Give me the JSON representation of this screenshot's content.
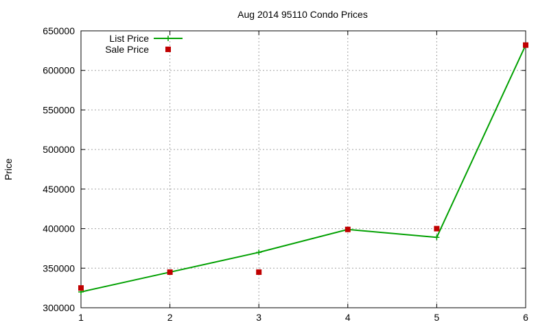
{
  "chart_data": {
    "type": "line",
    "title": "Aug 2014 95110 Condo Prices",
    "xlabel": "",
    "ylabel": "Price",
    "x": [
      1,
      2,
      3,
      4,
      5,
      6
    ],
    "xlim": [
      1,
      6
    ],
    "ylim": [
      300000,
      650000
    ],
    "xticks": [
      "1",
      "2",
      "3",
      "4",
      "5",
      "6"
    ],
    "yticks": [
      "300000",
      "350000",
      "400000",
      "450000",
      "500000",
      "550000",
      "600000",
      "650000"
    ],
    "grid": true,
    "legend_position": "top-left",
    "series": [
      {
        "name": "List Price",
        "style": "line+cross",
        "color": "#00a000",
        "values": [
          320000,
          345000,
          370000,
          399000,
          389000,
          632000
        ]
      },
      {
        "name": "Sale Price",
        "style": "square",
        "color": "#c00000",
        "values": [
          325000,
          345000,
          345000,
          399000,
          400000,
          632000
        ]
      }
    ]
  }
}
